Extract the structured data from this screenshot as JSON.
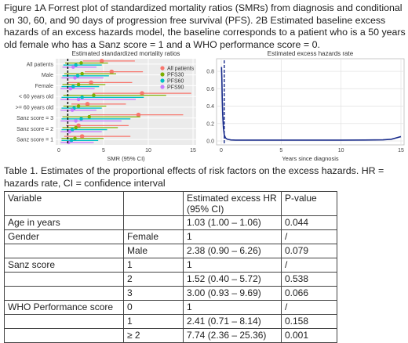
{
  "figure_caption": "Figure 1A Forrest plot of standardized mortality ratios (SMRs) from diagnosis and conditional on 30, 60, and 90 days of progression free survival (PFS). 2B Estimated baseline excess hazards of an excess hazards model, the baseline corresponds to a patient who is a 50 years old female who has a Sanz score = 1 and a WHO performance score = 0.",
  "chart_data": [
    {
      "type": "scatter",
      "title": "Estimated standardized mortality ratios",
      "xlabel": "SMR (95% CI)",
      "ylabel": "",
      "xlim": [
        0,
        15
      ],
      "xticks": [
        "0",
        "5",
        "10",
        "15"
      ],
      "reference_line_x": 1,
      "legend_position": "top-right",
      "categories": [
        "All patients",
        "Male",
        "Female",
        "< 60 years old",
        ">= 60 years old",
        "Sanz score = 3",
        "Sanz score = 2",
        "Sanz score = 1"
      ],
      "series": [
        {
          "name": "All patients",
          "color": "#f8766d",
          "points": [
            4.8,
            5.9,
            3.6,
            9.3,
            3.2,
            8.9,
            2.2,
            2.6
          ],
          "low": [
            2.7,
            2.9,
            1.0,
            3.8,
            1.4,
            3.5,
            0.8,
            0.6
          ],
          "high": [
            8.5,
            9.4,
            8.2,
            14.8,
            7.5,
            13.9,
            7.8,
            8.0
          ]
        },
        {
          "name": "PFS30",
          "color": "#7cae00",
          "points": [
            2.5,
            2.6,
            2.2,
            3.9,
            2.2,
            3.4,
            1.9,
            1.8
          ],
          "low": [
            0.7,
            0.6,
            0.4,
            0.5,
            0.5,
            0.4,
            0.4,
            0.3
          ],
          "high": [
            5.5,
            6.4,
            5.2,
            12.0,
            5.3,
            9.1,
            6.6,
            5.0
          ]
        },
        {
          "name": "PFS60",
          "color": "#00bfc4",
          "points": [
            1.9,
            2.1,
            1.6,
            2.6,
            1.7,
            2.5,
            1.5,
            1.4
          ],
          "low": [
            0.5,
            0.4,
            0.3,
            0.3,
            0.3,
            0.3,
            0.3,
            0.3
          ],
          "high": [
            4.8,
            5.6,
            4.5,
            9.5,
            4.8,
            8.0,
            5.4,
            4.4
          ]
        },
        {
          "name": "PFS90",
          "color": "#c77cff",
          "points": [
            1.6,
            1.8,
            1.3,
            2.2,
            1.5,
            1.9,
            1.2,
            1.1
          ],
          "low": [
            0.4,
            0.3,
            0.2,
            0.2,
            0.2,
            0.2,
            0.2,
            0.2
          ],
          "high": [
            4.2,
            5.0,
            4.0,
            8.6,
            4.2,
            7.0,
            4.8,
            3.9
          ]
        }
      ]
    },
    {
      "type": "line",
      "title": "Estimated excess hazards rate",
      "xlabel": "Years since diagnosis",
      "ylabel": "",
      "xlim": [
        0,
        15
      ],
      "ylim": [
        0,
        0.9
      ],
      "xticks": [
        "0",
        "5",
        "10",
        "15"
      ],
      "yticks": [
        "0.0",
        "0.2",
        "0.4",
        "0.6",
        "0.8"
      ],
      "reference_line_x": 0.25,
      "series": [
        {
          "name": "",
          "color": "#1a2d8c",
          "x": [
            0.02,
            0.05,
            0.08,
            0.12,
            0.18,
            0.25,
            0.35,
            0.5,
            0.8,
            1.2,
            2,
            4,
            7,
            10,
            12,
            13.5,
            14.2,
            14.6,
            15
          ],
          "y": [
            0.85,
            0.72,
            0.5,
            0.3,
            0.15,
            0.07,
            0.035,
            0.02,
            0.012,
            0.01,
            0.01,
            0.01,
            0.01,
            0.01,
            0.011,
            0.013,
            0.02,
            0.035,
            0.05
          ]
        }
      ]
    }
  ],
  "table_caption": "Table 1. Estimates of the proportional effects of risk factors on the excess hazards. HR = hazards rate, CI = confidence interval",
  "table": {
    "headers": [
      "Variable",
      "",
      "Estimated excess HR (95% CI)",
      "P-value"
    ],
    "rows": [
      [
        "Age in years",
        "",
        "1.03 (1.00 – 1.06)",
        "0.044"
      ],
      [
        "Gender",
        "Female",
        "1",
        "/"
      ],
      [
        "",
        "Male",
        "2.38 (0.90 – 6.26)",
        "0.079"
      ],
      [
        "Sanz score",
        "1",
        "1",
        "/"
      ],
      [
        "",
        "2",
        "1.52 (0.40 – 5.72)",
        "0.538"
      ],
      [
        "",
        "3",
        "3.00 (0.93 – 9.69)",
        "0.066"
      ],
      [
        "WHO Performance score",
        "0",
        "1",
        "/"
      ],
      [
        "",
        "1",
        "2.41 (0.71 – 8.14)",
        "0.158"
      ],
      [
        "",
        "≥ 2",
        "7.74 (2.36 – 25.36)",
        "0.001"
      ]
    ]
  }
}
